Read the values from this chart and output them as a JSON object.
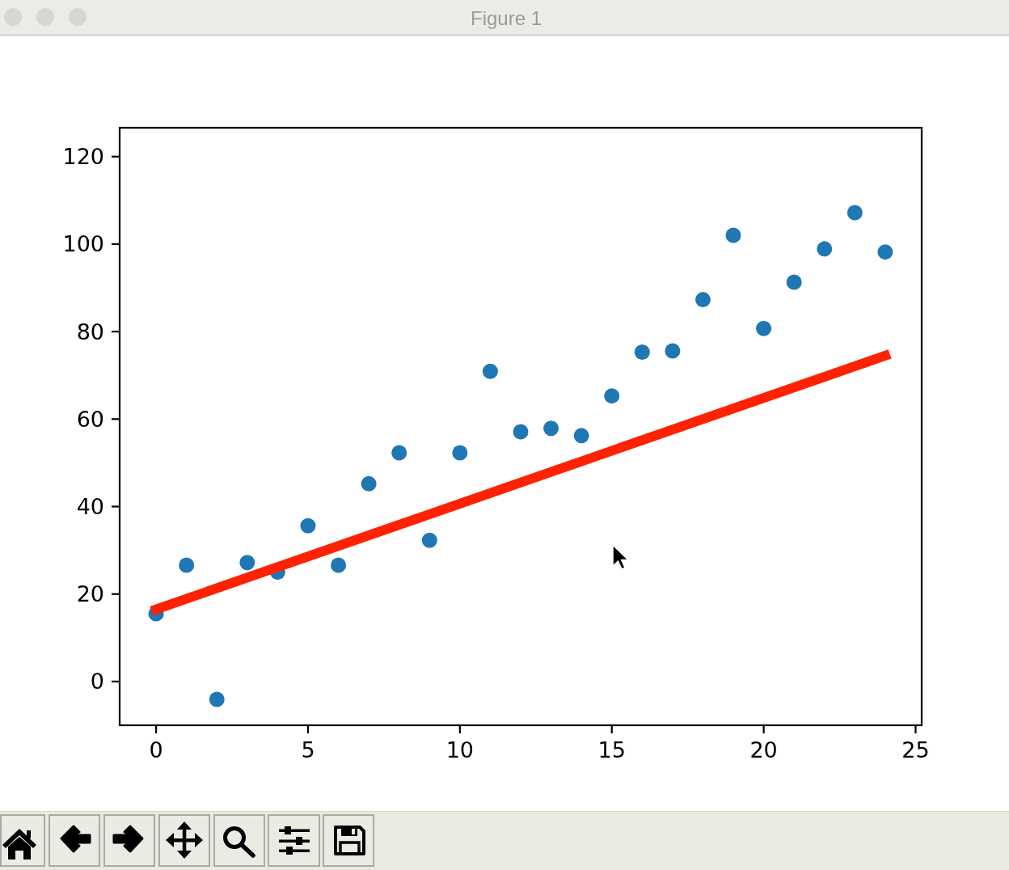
{
  "chart_data": {
    "type": "scatter",
    "x": [
      0,
      1,
      2,
      3,
      4,
      5,
      6,
      7,
      8,
      9,
      10,
      11,
      12,
      13,
      14,
      15,
      16,
      17,
      18,
      19,
      20,
      21,
      22,
      23,
      24
    ],
    "series": [
      {
        "color": "#1f77b4",
        "values": [
          15.5,
          26.6,
          -4.1,
          27.2,
          25.0,
          35.6,
          26.6,
          45.2,
          52.3,
          32.3,
          52.3,
          70.9,
          57.1,
          57.9,
          56.2,
          65.3,
          75.3,
          75.6,
          87.3,
          102.0,
          80.7,
          91.3,
          98.9,
          107.2,
          98.2
        ]
      },
      {
        "type": "line",
        "x": [
          0,
          24
        ],
        "values": [
          16.5,
          74.5
        ],
        "color": "#ff2200",
        "line_style": "solid",
        "marker": "none"
      }
    ],
    "xlim": [
      -1.2,
      25.2
    ],
    "ylim": [
      -10,
      126.6
    ],
    "xticks": [
      0,
      5,
      10,
      15,
      20,
      25
    ],
    "yticks": [
      0,
      20,
      40,
      60,
      80,
      100,
      120
    ],
    "marker": "circle",
    "annotations": [
      "Figure 1"
    ]
  }
}
